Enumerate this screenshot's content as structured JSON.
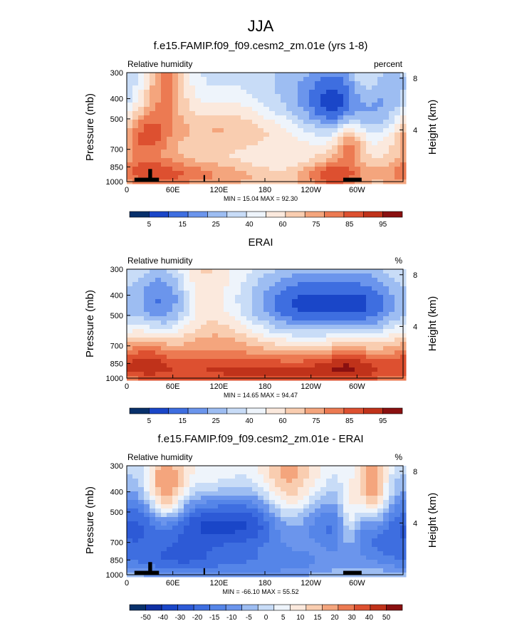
{
  "figure_title": "JJA",
  "chart_data": [
    {
      "type": "heatmap",
      "title": "f.e15.FAMIP.f09_f09.cesm2_zm.01e (yrs 1-8)",
      "left_label": "Relative humidity",
      "right_label": "percent",
      "ylabel": "Pressure (mb)",
      "y2label": "Height (km)",
      "x_ticks": [
        "0",
        "60E",
        "120E",
        "180",
        "120W",
        "60W"
      ],
      "x_tick_lons": [
        0,
        60,
        120,
        180,
        240,
        300
      ],
      "xlim": [
        0,
        360
      ],
      "y_ticks": [
        300,
        400,
        500,
        700,
        850,
        1000
      ],
      "ylim": [
        1000,
        300
      ],
      "y2_ticks": [
        "8",
        "4"
      ],
      "y2_tick_heights_km": [
        8,
        4
      ],
      "stats": "MIN =  15.04  MAX =  92.30",
      "colorbar_ticks": [
        "5",
        "15",
        "25",
        "40",
        "60",
        "75",
        "85",
        "95"
      ],
      "colors": [
        "#08306b",
        "#1a46c8",
        "#3e6ee0",
        "#6b95ec",
        "#9dbdf2",
        "#c8dcf7",
        "#eef4fb",
        "#fbe9dd",
        "#f9cdb0",
        "#f4a57d",
        "#ec7a52",
        "#dd5030",
        "#c0321a",
        "#8a1010"
      ],
      "field": {
        "base": 5.2,
        "blobs": [
          [
            140,
            540,
            340,
            4.5
          ],
          [
            235,
            470,
            90,
            -4
          ],
          [
            65,
            450,
            60,
            -2
          ],
          [
            330,
            450,
            50,
            -3
          ],
          [
            280,
            450,
            45,
            -3.5
          ],
          [
            20,
            900,
            60,
            4
          ],
          [
            270,
            920,
            40,
            4
          ],
          [
            25,
            600,
            30,
            3
          ],
          [
            52,
            310,
            30,
            5
          ],
          [
            310,
            330,
            25,
            3
          ],
          [
            290,
            640,
            20,
            3.5
          ],
          [
            180,
            980,
            200,
            2.5
          ],
          [
            100,
            900,
            70,
            2
          ]
        ]
      }
    },
    {
      "type": "heatmap",
      "title": "ERAI",
      "left_label": "Relative humidity",
      "right_label": "%",
      "ylabel": "Pressure (mb)",
      "y2label": "Height (km)",
      "x_ticks": [
        "0",
        "60E",
        "120E",
        "180",
        "120W",
        "60W"
      ],
      "x_tick_lons": [
        0,
        60,
        120,
        180,
        240,
        300
      ],
      "xlim": [
        0,
        360
      ],
      "y_ticks": [
        300,
        400,
        500,
        700,
        850,
        1000
      ],
      "ylim": [
        1000,
        300
      ],
      "y2_ticks": [
        "8",
        "4"
      ],
      "y2_tick_heights_km": [
        8,
        4
      ],
      "stats": "MIN =  14.65  MAX =  94.47",
      "colorbar_ticks": [
        "5",
        "15",
        "25",
        "40",
        "60",
        "75",
        "85",
        "95"
      ],
      "colors": [
        "#08306b",
        "#1a46c8",
        "#3e6ee0",
        "#6b95ec",
        "#9dbdf2",
        "#c8dcf7",
        "#eef4fb",
        "#fbe9dd",
        "#f9cdb0",
        "#f4a57d",
        "#ec7a52",
        "#dd5030",
        "#c0321a",
        "#8a1010"
      ],
      "field": {
        "base": 7.2,
        "blobs": [
          [
            235,
            440,
            90,
            -6
          ],
          [
            320,
            440,
            45,
            -3
          ],
          [
            50,
            420,
            40,
            -5
          ],
          [
            90,
            340,
            40,
            1.5
          ],
          [
            180,
            930,
            260,
            4.5
          ],
          [
            290,
            850,
            40,
            2
          ],
          [
            20,
            800,
            40,
            2.5
          ],
          [
            120,
            650,
            60,
            1.5
          ]
        ]
      }
    },
    {
      "type": "heatmap",
      "title": "f.e15.FAMIP.f09_f09.cesm2_zm.01e - ERAI",
      "left_label": "Relative humidity",
      "right_label": "%",
      "ylabel": "Pressure (mb)",
      "y2label": "Height (km)",
      "x_ticks": [
        "0",
        "60E",
        "120E",
        "180",
        "120W",
        "60W"
      ],
      "x_tick_lons": [
        0,
        60,
        120,
        180,
        240,
        300
      ],
      "xlim": [
        0,
        360
      ],
      "y_ticks": [
        300,
        400,
        500,
        700,
        850,
        1000
      ],
      "ylim": [
        1000,
        300
      ],
      "y2_ticks": [
        "8",
        "4"
      ],
      "y2_tick_heights_km": [
        8,
        4
      ],
      "stats": "MIN = -66.10  MAX =  55.52",
      "colorbar_ticks": [
        "-50",
        "-40",
        "-30",
        "-20",
        "-15",
        "-10",
        "-5",
        "0",
        "5",
        "10",
        "15",
        "20",
        "30",
        "40",
        "50"
      ],
      "colors": [
        "#08306b",
        "#0f2fa3",
        "#1a46c8",
        "#2d5ad6",
        "#3e6ee0",
        "#5585e8",
        "#6b95ec",
        "#9dbdf2",
        "#c8dcf7",
        "#eef4fb",
        "#fbe9dd",
        "#f9cdb0",
        "#f4a57d",
        "#ec7a52",
        "#dd5030",
        "#c0321a",
        "#8a1010"
      ],
      "field": {
        "base": 8.2,
        "blobs": [
          [
            130,
            560,
            150,
            -6
          ],
          [
            60,
            850,
            80,
            -4
          ],
          [
            200,
            880,
            100,
            -3
          ],
          [
            290,
            600,
            30,
            -3
          ],
          [
            340,
            720,
            40,
            -2
          ],
          [
            50,
            420,
            28,
            7
          ],
          [
            320,
            380,
            20,
            5
          ],
          [
            290,
            560,
            15,
            5
          ],
          [
            210,
            310,
            50,
            3.5
          ],
          [
            210,
            520,
            30,
            3
          ],
          [
            110,
            320,
            40,
            2
          ],
          [
            30,
            500,
            40,
            -2
          ]
        ]
      }
    }
  ]
}
